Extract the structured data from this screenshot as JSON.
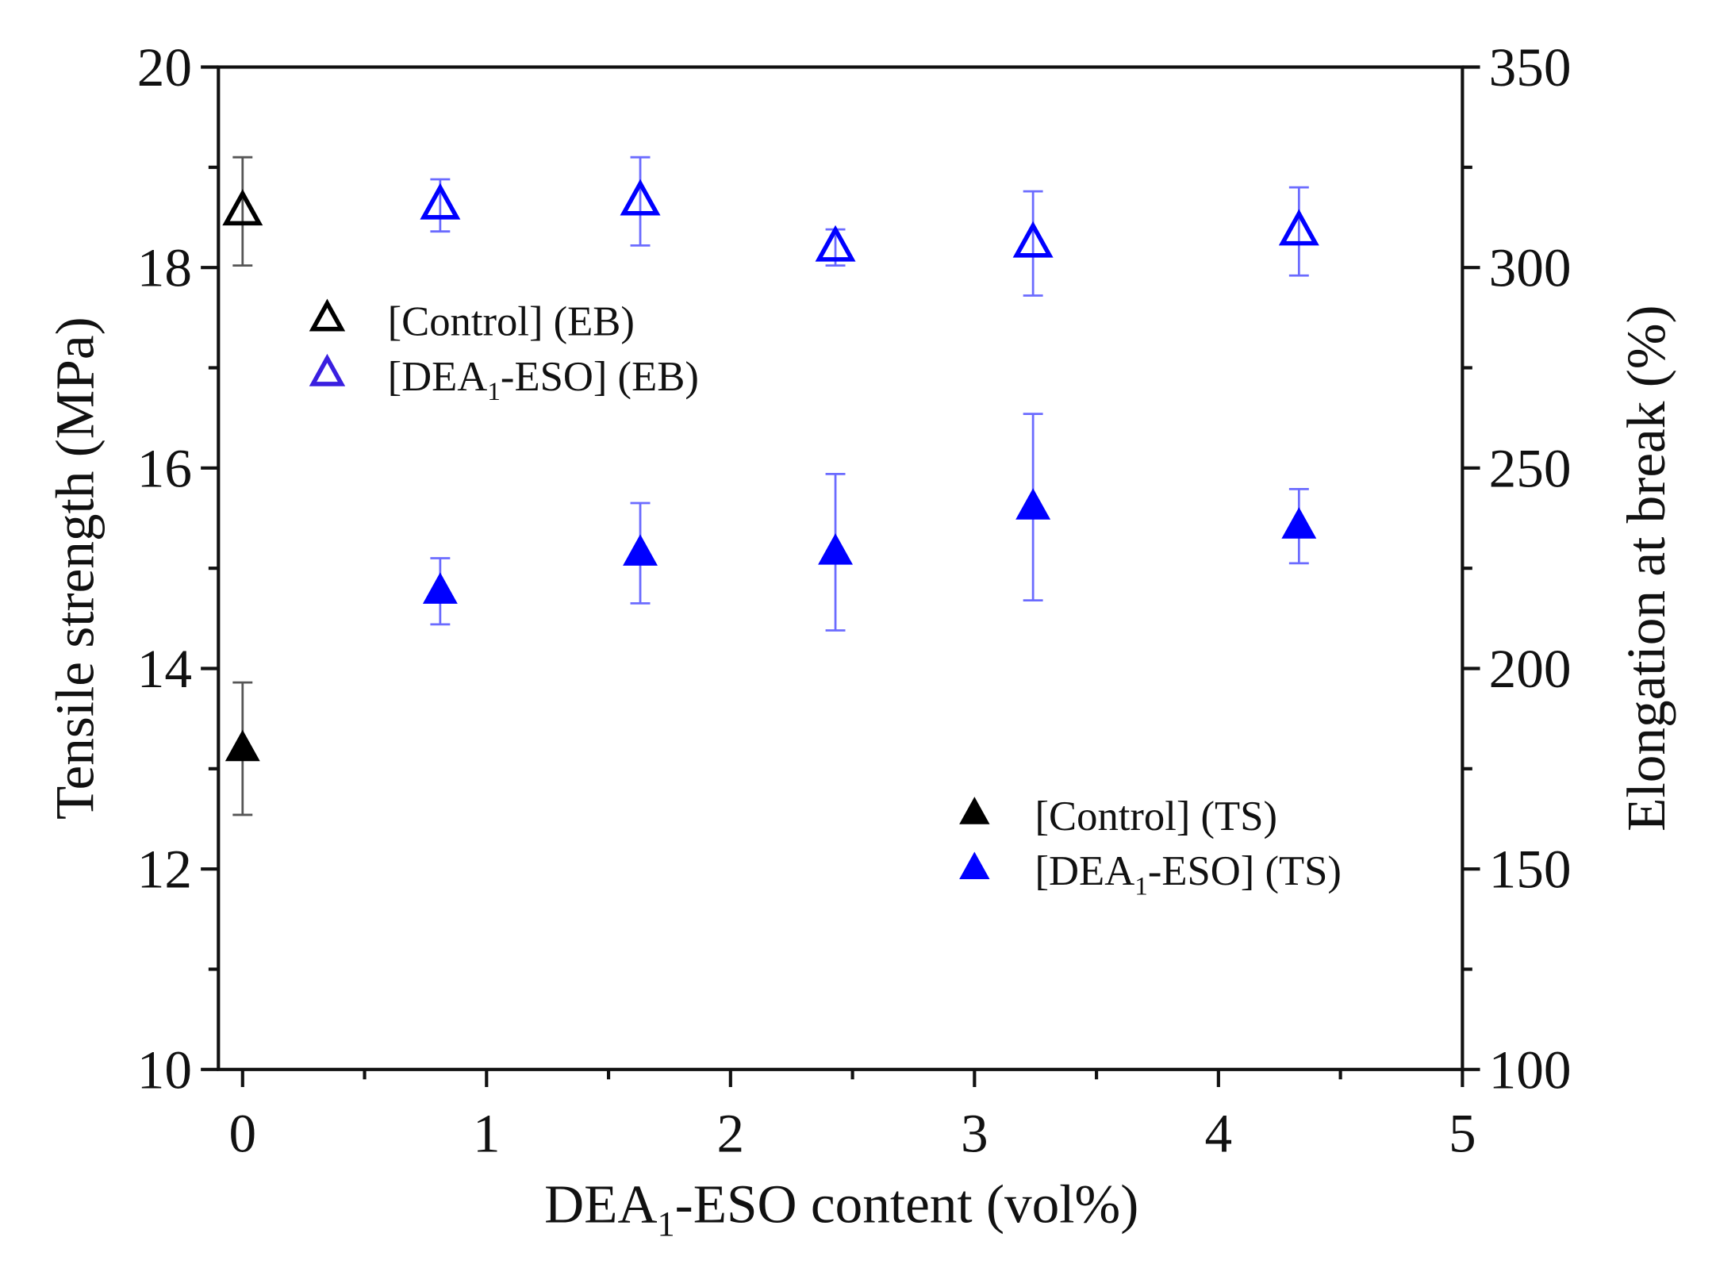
{
  "chart_data": {
    "type": "scatter",
    "title": "",
    "xlabel": "DEA1-ESO content (vol%)",
    "xlabel_parts": {
      "pre": "DEA",
      "sub": "1",
      "post": "-ESO content (vol%)"
    },
    "ylabel_left": "Tensile strength (MPa)",
    "ylabel_right": "Elongation at break (%)",
    "xlim": [
      -0.1,
      5
    ],
    "ylim_left": [
      10,
      20
    ],
    "ylim_right": [
      100,
      350
    ],
    "xticks": [
      "0",
      "1",
      "2",
      "3",
      "4",
      "5"
    ],
    "yticks_left": [
      "10",
      "12",
      "14",
      "16",
      "18",
      "20"
    ],
    "yticks_right": [
      "100",
      "150",
      "200",
      "250",
      "300",
      "350"
    ],
    "grid": false,
    "legends": [
      {
        "placement": "upper-left",
        "entries": [
          {
            "label_pre": "[Control] (EB)",
            "sub": "",
            "label_post": "",
            "marker": "open-triangle",
            "color": "#000000"
          },
          {
            "label_pre": "[DEA",
            "sub": "1",
            "label_post": "-ESO] (EB)",
            "marker": "open-triangle",
            "color": "#3a1fe0"
          }
        ]
      },
      {
        "placement": "lower-right",
        "entries": [
          {
            "label_pre": "[Control] (TS)",
            "sub": "",
            "label_post": "",
            "marker": "filled-triangle",
            "color": "#000000"
          },
          {
            "label_pre": "[DEA",
            "sub": "1",
            "label_post": "-ESO] (TS)",
            "marker": "filled-triangle",
            "color": "#0000ff"
          }
        ]
      }
    ],
    "series": [
      {
        "name": "[Control] (EB)",
        "axis": "right",
        "marker": "open",
        "color": "#000000",
        "x": [
          0
        ],
        "y": [
          314
        ],
        "err": [
          13.5
        ]
      },
      {
        "name": "[DEA1-ESO] (EB)",
        "axis": "right",
        "marker": "open",
        "color": "#0000ff",
        "x": [
          0.81,
          1.63,
          2.43,
          3.24,
          4.33
        ],
        "y": [
          315.5,
          316.5,
          305,
          306,
          309
        ],
        "err": [
          6.5,
          11,
          4.5,
          13,
          11
        ]
      },
      {
        "name": "[Control] (TS)",
        "axis": "left",
        "marker": "filled",
        "color": "#000000",
        "x": [
          0
        ],
        "y": [
          13.2
        ],
        "err": [
          0.66
        ]
      },
      {
        "name": "[DEA1-ESO] (TS)",
        "axis": "left",
        "marker": "filled",
        "color": "#0000ff",
        "x": [
          0.81,
          1.63,
          2.43,
          3.24,
          4.33
        ],
        "y": [
          14.77,
          15.15,
          15.16,
          15.61,
          15.42
        ],
        "err": [
          0.33,
          0.5,
          0.78,
          0.93,
          0.37
        ]
      }
    ]
  }
}
